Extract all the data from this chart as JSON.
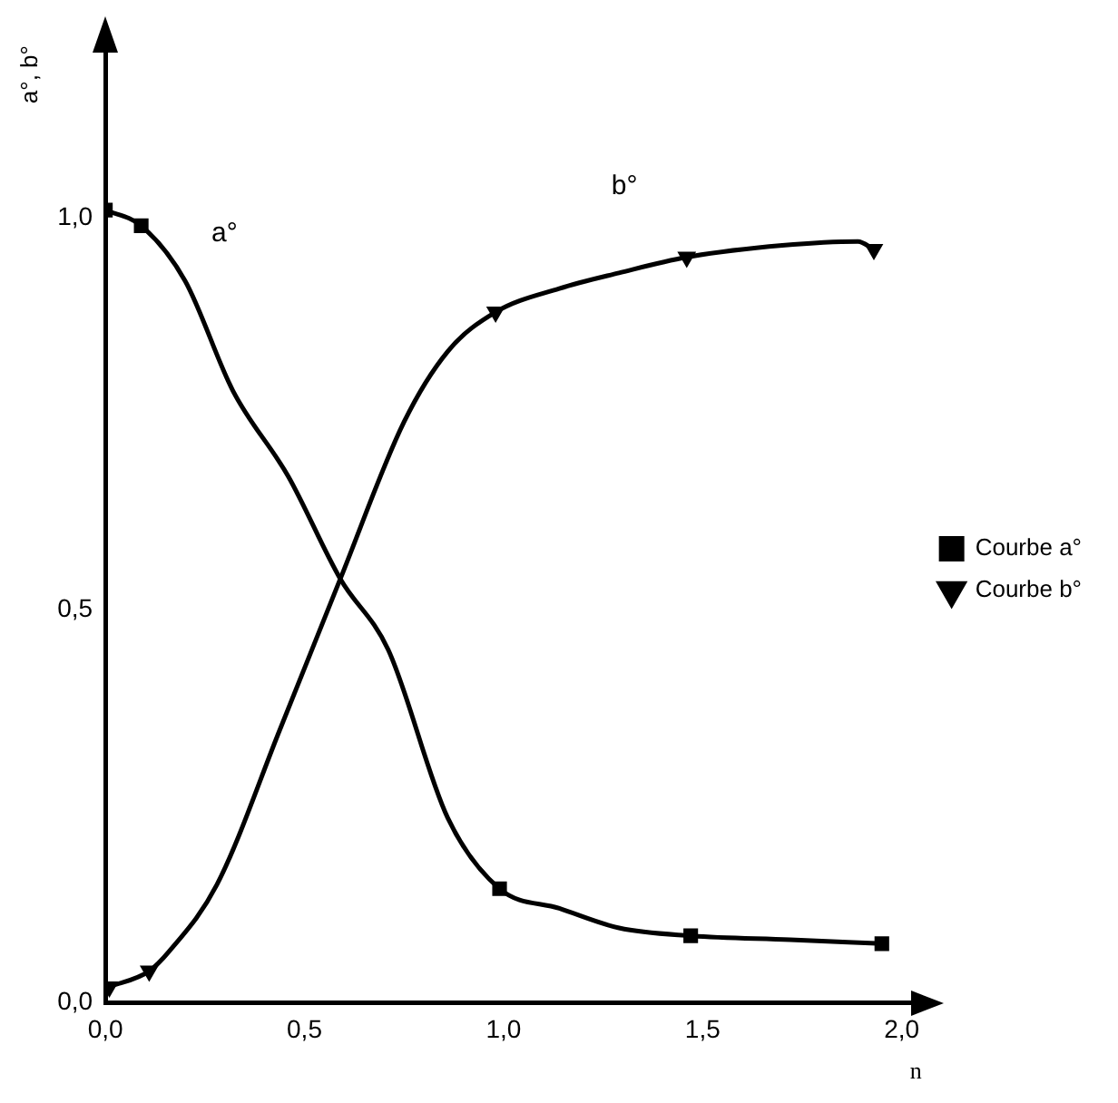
{
  "chart_data": {
    "type": "scatter",
    "ylabel": "a°, b°",
    "xlabel": "n",
    "xlim": [
      0,
      2.05
    ],
    "ylim": [
      0,
      1.22
    ],
    "xticks": [
      {
        "value": 0,
        "label": "0,0"
      },
      {
        "value": 0.5,
        "label": "0,5"
      },
      {
        "value": 1,
        "label": "1,0"
      },
      {
        "value": 1.5,
        "label": "1,5"
      },
      {
        "value": 2,
        "label": "2,0"
      }
    ],
    "yticks": [
      {
        "value": 0,
        "label": "0,0"
      },
      {
        "value": 0.5,
        "label": "0,5"
      },
      {
        "value": 1,
        "label": "1,0"
      }
    ],
    "grid": false,
    "legend": "right",
    "series": [
      {
        "type": "line",
        "color": "#000000",
        "marker": "none",
        "line_style": "solid",
        "x": [
          0,
          0.09,
          0.2,
          0.32,
          0.46,
          0.59,
          0.71,
          0.86,
          0.99,
          1.14,
          1.29,
          1.47,
          1.72,
          1.95
        ],
        "values": [
          1.01,
          0.99,
          0.92,
          0.78,
          0.67,
          0.54,
          0.45,
          0.235,
          0.145,
          0.12,
          0.095,
          0.085,
          0.08,
          0.075
        ]
      },
      {
        "type": "line",
        "color": "#000000",
        "marker": "none",
        "line_style": "solid",
        "x": [
          0.01,
          0.11,
          0.16,
          0.28,
          0.44,
          0.59,
          0.75,
          0.86,
          0.98,
          1.14,
          1.29,
          1.46,
          1.7,
          1.89,
          1.93
        ],
        "values": [
          0.02,
          0.04,
          0.065,
          0.15,
          0.35,
          0.54,
          0.74,
          0.83,
          0.88,
          0.91,
          0.93,
          0.95,
          0.965,
          0.97,
          0.96
        ]
      },
      {
        "type": "scatter",
        "name": "Courbe a°",
        "color": "#000000",
        "marker": "square",
        "x": [
          0,
          0.09,
          0.99,
          1.47,
          1.95
        ],
        "values": [
          1.01,
          0.99,
          0.145,
          0.085,
          0.075
        ]
      },
      {
        "type": "scatter",
        "name": "Courbe b°",
        "color": "#000000",
        "marker": "triangle",
        "x": [
          0.01,
          0.11,
          0.98,
          1.46,
          1.93
        ],
        "values": [
          0.02,
          0.04,
          0.88,
          0.95,
          0.96
        ]
      }
    ],
    "annotations": [
      "a°",
      "b°"
    ]
  }
}
